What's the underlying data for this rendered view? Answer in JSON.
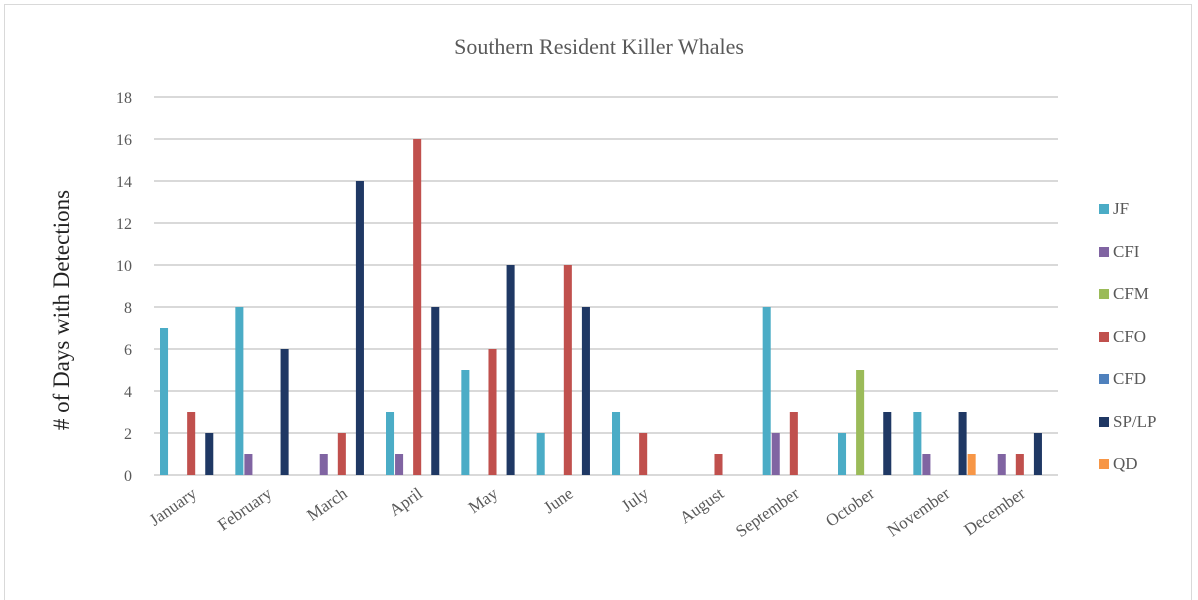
{
  "chart_data": {
    "type": "bar",
    "title": "Southern Resident Killer Whales",
    "xlabel": "",
    "ylabel": "# of Days with Detections",
    "ylim": [
      0,
      18
    ],
    "yticks": [
      0,
      2,
      4,
      6,
      8,
      10,
      12,
      14,
      16,
      18
    ],
    "grid": true,
    "legend_position": "right",
    "categories": [
      "January",
      "February",
      "March",
      "April",
      "May",
      "June",
      "July",
      "August",
      "September",
      "October",
      "November",
      "December"
    ],
    "series": [
      {
        "name": "JF",
        "color": "#4bacc6",
        "values": [
          7,
          8,
          0,
          3,
          5,
          2,
          3,
          0,
          8,
          2,
          3,
          0
        ]
      },
      {
        "name": "CFI",
        "color": "#8064a2",
        "values": [
          0,
          1,
          1,
          1,
          0,
          0,
          0,
          0,
          2,
          0,
          1,
          1
        ]
      },
      {
        "name": "CFM",
        "color": "#9bbb59",
        "values": [
          0,
          0,
          0,
          0,
          0,
          0,
          0,
          0,
          0,
          5,
          0,
          0
        ]
      },
      {
        "name": "CFO",
        "color": "#c0504d",
        "values": [
          3,
          0,
          2,
          16,
          6,
          10,
          2,
          1,
          3,
          0,
          0,
          1
        ]
      },
      {
        "name": "CFD",
        "color": "#4f81bd",
        "values": [
          0,
          0,
          0,
          0,
          0,
          0,
          0,
          0,
          0,
          0,
          0,
          0
        ]
      },
      {
        "name": "SP/LP",
        "color": "#1f3864",
        "values": [
          2,
          6,
          14,
          8,
          10,
          8,
          0,
          0,
          0,
          3,
          3,
          2
        ]
      },
      {
        "name": "QD",
        "color": "#f79646",
        "values": [
          0,
          0,
          0,
          0,
          0,
          0,
          0,
          0,
          0,
          0,
          1,
          0
        ]
      }
    ]
  }
}
